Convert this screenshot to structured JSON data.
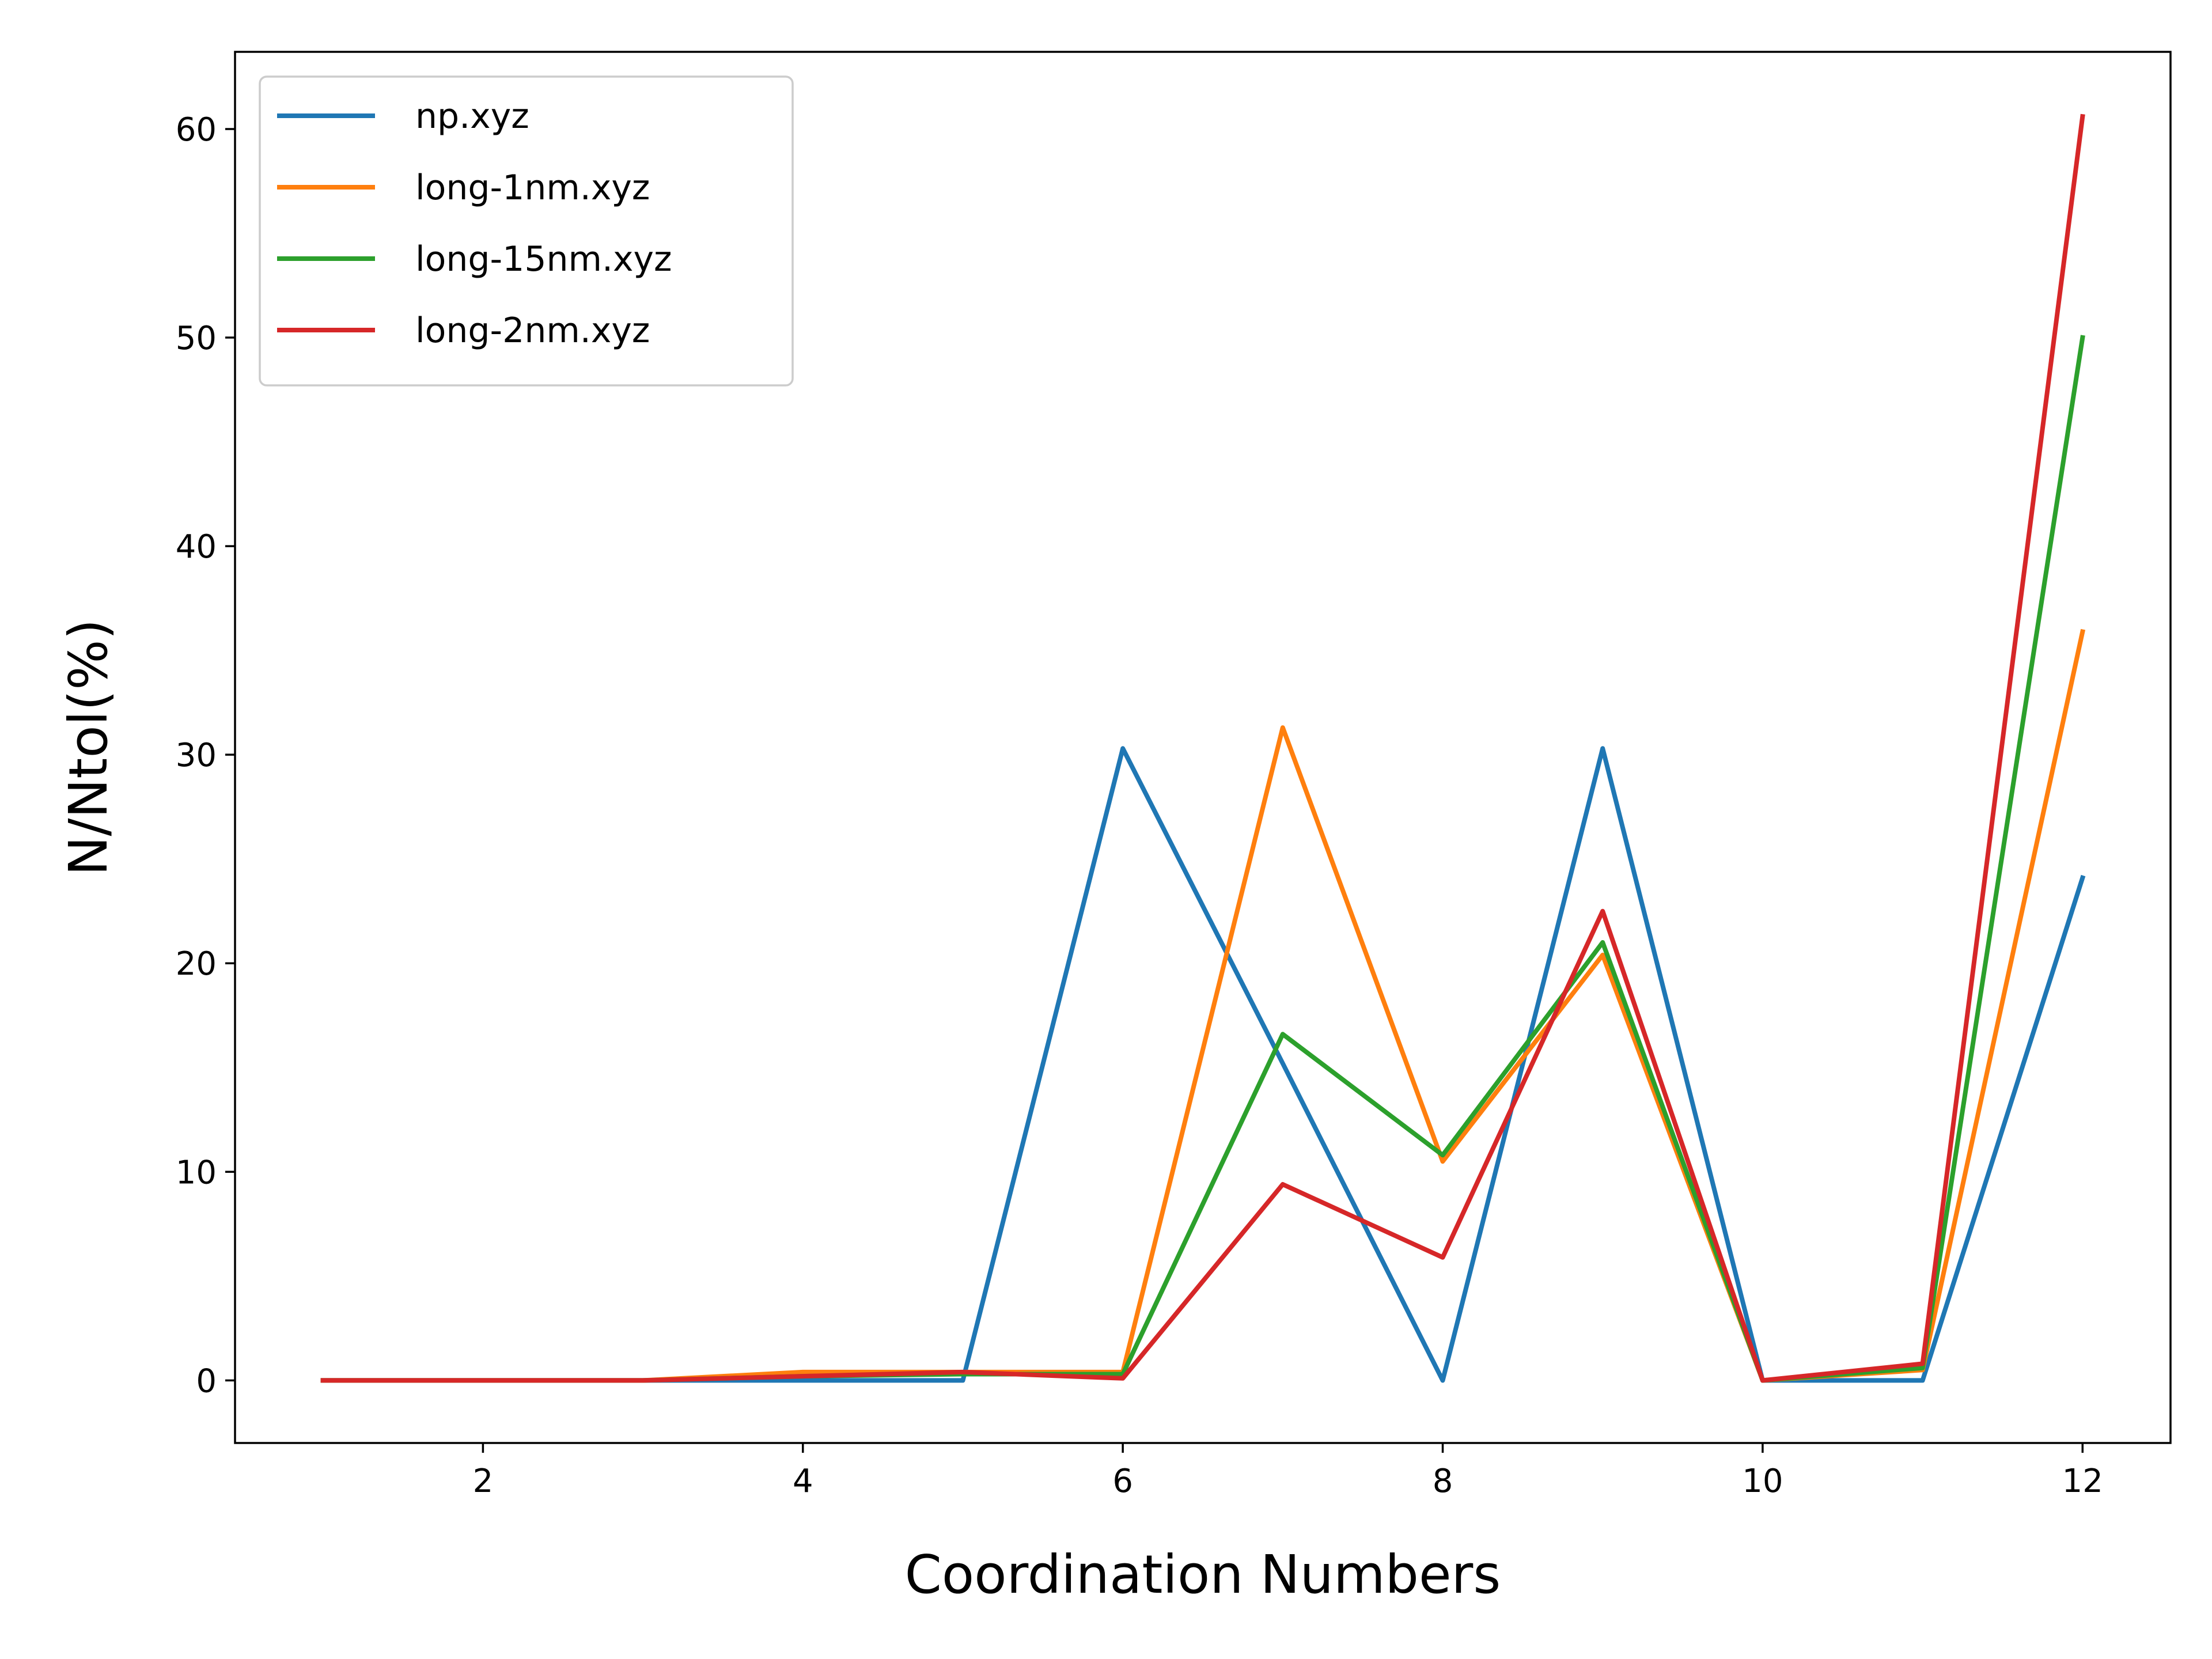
{
  "chart_data": {
    "type": "line",
    "xlabel": "Coordination Numbers",
    "ylabel": "N/Ntol(%)",
    "xlim": [
      0.45,
      12.55
    ],
    "ylim": [
      -3.0,
      63.7
    ],
    "xticks": [
      2,
      4,
      6,
      8,
      10,
      12
    ],
    "yticks": [
      0,
      10,
      20,
      30,
      40,
      50,
      60
    ],
    "grid": false,
    "legend_position": "top-left",
    "x": [
      1,
      2,
      3,
      4,
      5,
      6,
      7,
      8,
      9,
      10,
      11,
      12
    ],
    "series": [
      {
        "name": "np.xyz",
        "color": "#1f77b4",
        "values": [
          0,
          0,
          0,
          0,
          0,
          30.3,
          15.2,
          0,
          30.3,
          0,
          0,
          24.1
        ]
      },
      {
        "name": "long-1nm.xyz",
        "color": "#ff7f0e",
        "values": [
          0,
          0,
          0,
          0.4,
          0.4,
          0.4,
          31.3,
          10.5,
          20.4,
          0,
          0.5,
          35.9
        ]
      },
      {
        "name": "long-15nm.xyz",
        "color": "#2ca02c",
        "values": [
          0,
          0,
          0,
          0.2,
          0.3,
          0.3,
          16.6,
          10.8,
          21.0,
          0,
          0.6,
          50.0
        ]
      },
      {
        "name": "long-2nm.xyz",
        "color": "#d62728",
        "values": [
          0,
          0,
          0,
          0.2,
          0.4,
          0.1,
          9.4,
          5.9,
          22.5,
          0,
          0.8,
          60.6
        ]
      }
    ]
  }
}
